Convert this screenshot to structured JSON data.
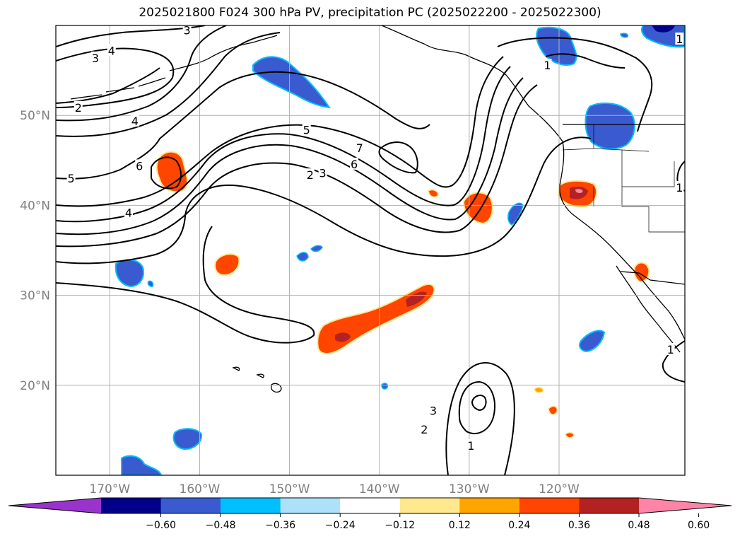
{
  "title": "2025021800 F024 300 hPa PV, precipitation PC (2025022200 - 2025022300)",
  "chart_data": {
    "type": "contour-map",
    "title": "2025021800 F024 300 hPa PV, precipitation PC (2025022200 - 2025022300)",
    "variables": [
      "300 hPa PV (contours)",
      "precipitation PC (shaded)"
    ],
    "lon_range": [
      -176,
      -106
    ],
    "lat_range": [
      10,
      60
    ],
    "lat_ticks": [
      {
        "value": 20,
        "label": "20°N"
      },
      {
        "value": 30,
        "label": "30°N"
      },
      {
        "value": 40,
        "label": "40°N"
      },
      {
        "value": 50,
        "label": "50°N"
      }
    ],
    "lon_ticks": [
      {
        "value": -170,
        "label": "170°W"
      },
      {
        "value": -160,
        "label": "160°W"
      },
      {
        "value": -150,
        "label": "150°W"
      },
      {
        "value": -140,
        "label": "140°W"
      },
      {
        "value": -130,
        "label": "130°W"
      },
      {
        "value": -120,
        "label": "120°W"
      }
    ],
    "grid": true,
    "pv_contour_levels": [
      1,
      2,
      3,
      4,
      5,
      6,
      7
    ],
    "contour_labels": [
      {
        "text": "3",
        "lon": -161.4,
        "lat": 59.5
      },
      {
        "text": "3",
        "lon": -171.6,
        "lat": 56.4
      },
      {
        "text": "4",
        "lon": -169.8,
        "lat": 57.2
      },
      {
        "text": "2",
        "lon": -173.5,
        "lat": 50.9
      },
      {
        "text": "4",
        "lon": -167.2,
        "lat": 49.4
      },
      {
        "text": "5",
        "lon": -174.3,
        "lat": 43.0
      },
      {
        "text": "6",
        "lon": -166.7,
        "lat": 44.4
      },
      {
        "text": "4",
        "lon": -167.9,
        "lat": 39.2
      },
      {
        "text": "5",
        "lon": -148.1,
        "lat": 48.4
      },
      {
        "text": "7",
        "lon": -142.2,
        "lat": 46.4
      },
      {
        "text": "6",
        "lon": -142.8,
        "lat": 44.6
      },
      {
        "text": "2",
        "lon": -147.7,
        "lat": 43.4
      },
      {
        "text": "3",
        "lon": -146.3,
        "lat": 43.6
      },
      {
        "text": "1",
        "lon": -121.3,
        "lat": 55.6
      },
      {
        "text": "1",
        "lon": -106.6,
        "lat": 58.5
      },
      {
        "text": "1",
        "lon": -106.6,
        "lat": 42.0
      },
      {
        "text": "1",
        "lon": -107.6,
        "lat": 24.0
      },
      {
        "text": "3",
        "lon": -134.0,
        "lat": 17.2
      },
      {
        "text": "2",
        "lon": -135.0,
        "lat": 15.1
      },
      {
        "text": "1",
        "lon": -129.8,
        "lat": 13.3
      }
    ],
    "colorbar": {
      "ticks": [
        "−0.60",
        "−0.48",
        "−0.36",
        "−0.24",
        "−0.12",
        "0.12",
        "0.24",
        "0.36",
        "0.48",
        "0.60"
      ],
      "colors": [
        "#9933CC",
        "#00008B",
        "#3A5BCF",
        "#00BFFF",
        "#ADE1FA",
        "#FFFFFF",
        "#FFE88E",
        "#FFA500",
        "#FF4500",
        "#B22222",
        "#FF85A8"
      ],
      "extend": "both"
    }
  }
}
